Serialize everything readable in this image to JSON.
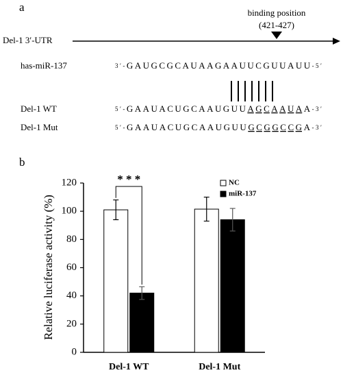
{
  "panel_a": {
    "label": "a",
    "utr": "Del-1 3′-UTR",
    "binding_title": "binding position",
    "binding_range": "(421-427)",
    "mirna": {
      "name": "has-miR-137",
      "prefix": "3′-",
      "sequence": "GAUGCGCAUAAGAAUUCGUUAUU",
      "suffix": "-5′"
    },
    "wt": {
      "name": "Del-1 WT",
      "prefix": "5′-",
      "sequence": "GAAUACUGCAAUGUU",
      "site": "AGCAAUA",
      "rest": "A",
      "suffix": "-3′"
    },
    "mut": {
      "name": "Del-1 Mut",
      "prefix": "5′-",
      "sequence": "GAAUACUGCAAUGUU",
      "site": "GCGGCCG",
      "rest": "A",
      "suffix": "-3′"
    }
  },
  "chart_data": {
    "type": "bar",
    "panel_label": "b",
    "y_label": "Relative luciferase activity (%)",
    "categories": [
      "Del-1 WT",
      "Del-1 Mut"
    ],
    "series": [
      {
        "name": "NC",
        "color": "#ffffff",
        "values": [
          101,
          101.5
        ],
        "errors": [
          7,
          8.5
        ]
      },
      {
        "name": "miR-137",
        "color": "#000000",
        "values": [
          42,
          94
        ],
        "errors": [
          4.5,
          8
        ]
      }
    ],
    "ylim": [
      0,
      120
    ],
    "yticks": [
      0,
      20,
      40,
      60,
      80,
      100,
      120
    ],
    "annotation": "* * *",
    "legend": "upper right"
  }
}
